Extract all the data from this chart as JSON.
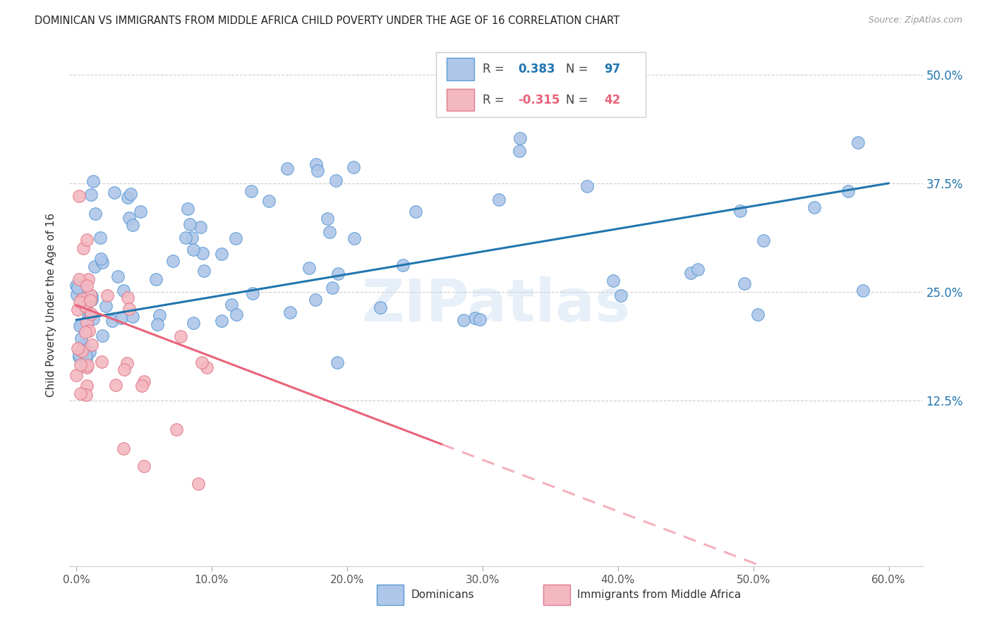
{
  "title": "DOMINICAN VS IMMIGRANTS FROM MIDDLE AFRICA CHILD POVERTY UNDER THE AGE OF 16 CORRELATION CHART",
  "source": "Source: ZipAtlas.com",
  "xlabel_ticks": [
    "0.0%",
    "",
    "",
    "",
    "",
    "",
    "",
    "",
    "",
    "",
    "10.0%",
    "",
    "",
    "",
    "",
    "",
    "",
    "",
    "",
    "",
    "20.0%",
    "",
    "",
    "",
    "",
    "",
    "",
    "",
    "",
    "",
    "30.0%",
    "",
    "",
    "",
    "",
    "",
    "",
    "",
    "",
    "",
    "40.0%",
    "",
    "",
    "",
    "",
    "",
    "",
    "",
    "",
    "",
    "50.0%",
    "",
    "",
    "",
    "",
    "",
    "",
    "",
    "",
    "",
    "60.0%"
  ],
  "xlabel_vals_major": [
    0.0,
    0.1,
    0.2,
    0.3,
    0.4,
    0.5,
    0.6
  ],
  "xlabel_labels_major": [
    "0.0%",
    "10.0%",
    "20.0%",
    "30.0%",
    "40.0%",
    "50.0%",
    "60.0%"
  ],
  "ylabel_ticks": [
    "12.5%",
    "25.0%",
    "37.5%",
    "50.0%"
  ],
  "ylabel_vals": [
    0.125,
    0.25,
    0.375,
    0.5
  ],
  "xlim": [
    -0.005,
    0.625
  ],
  "ylim": [
    -0.065,
    0.535
  ],
  "dominican_color": "#aec6e8",
  "immigrant_color": "#f4b8c1",
  "dominican_edge": "#5b9bd5",
  "immigrant_edge": "#e07a8a",
  "trend_dominican_color": "#2176ae",
  "trend_immigrant_color": "#e8637a",
  "R_dominican": "0.383",
  "N_dominican": "97",
  "R_immigrant": "-0.315",
  "N_immigrant": "42",
  "legend_dominican": "Dominicans",
  "legend_immigrant": "Immigrants from Middle Africa",
  "watermark": "ZIPatlas",
  "ylabel": "Child Poverty Under the Age of 16",
  "dom_trend_x0": 0.0,
  "dom_trend_y0": 0.218,
  "dom_trend_x1": 0.6,
  "dom_trend_y1": 0.375,
  "imm_trend_x0": 0.0,
  "imm_trend_y0": 0.235,
  "imm_trend_x1": 0.27,
  "imm_trend_y1": 0.075
}
